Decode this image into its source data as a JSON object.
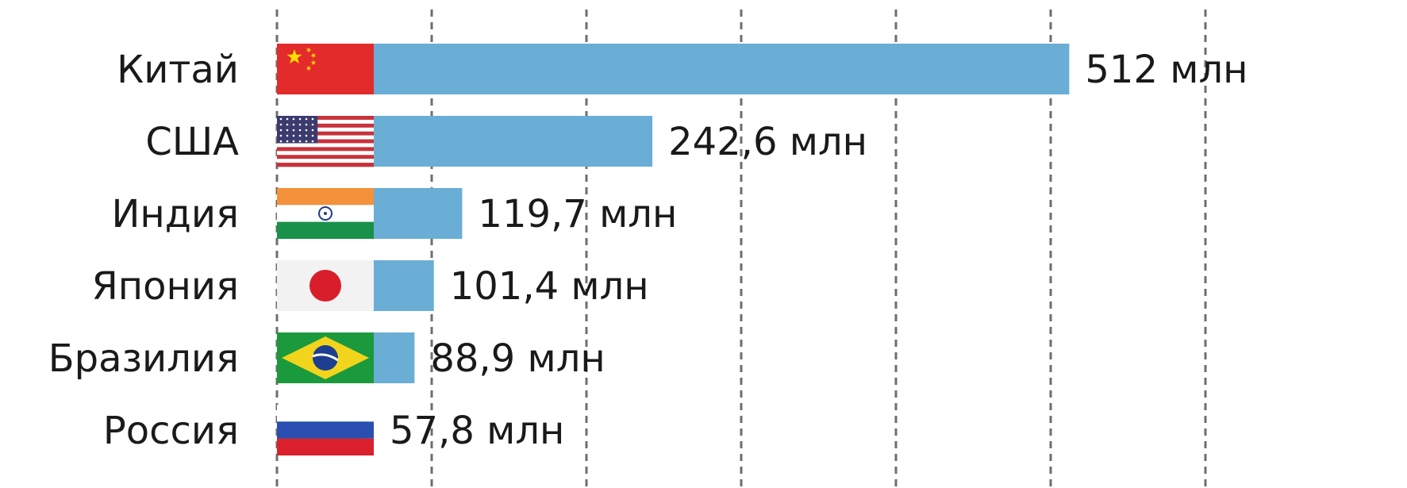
{
  "chart_data": {
    "type": "bar",
    "orientation": "horizontal",
    "categories": [
      "Китай",
      "США",
      "Индия",
      "Япония",
      "Бразилия",
      "Россия"
    ],
    "values": [
      512,
      242.6,
      119.7,
      101.4,
      88.9,
      57.8
    ],
    "value_labels": [
      "512 млн",
      "242,6 млн",
      "119,7 млн",
      "101,4 млн",
      "88,9 млн",
      "57,8 млн"
    ],
    "flags": [
      "china-flag-icon",
      "usa-flag-icon",
      "india-flag-icon",
      "japan-flag-icon",
      "brazil-flag-icon",
      "russia-flag-icon"
    ],
    "bar_color": "#6aaed6",
    "grid": true,
    "xlim": [
      0,
      600
    ],
    "title": "",
    "xlabel": "",
    "ylabel": ""
  }
}
